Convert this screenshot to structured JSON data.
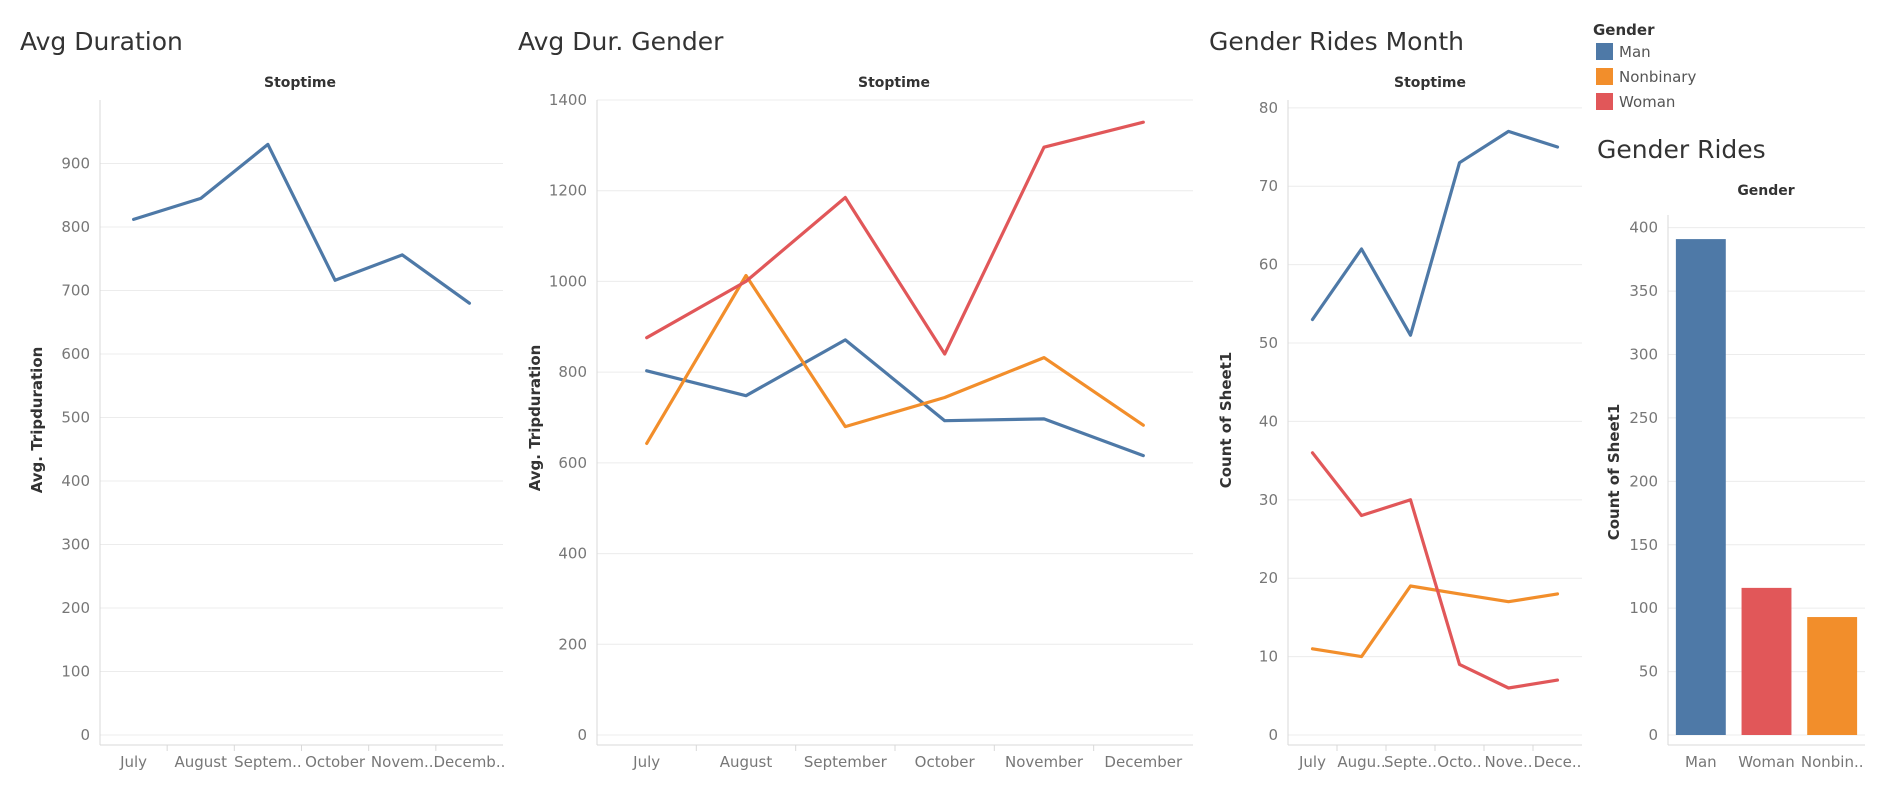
{
  "colors": {
    "man": "#4e79a7",
    "nonbinary": "#f28e2b",
    "woman": "#e15759"
  },
  "legend": {
    "title": "Gender",
    "items": [
      {
        "label": "Man",
        "color": "#4e79a7"
      },
      {
        "label": "Nonbinary",
        "color": "#f28e2b"
      },
      {
        "label": "Woman",
        "color": "#e15759"
      }
    ]
  },
  "chart_data": [
    {
      "type": "line",
      "title": "Avg Duration",
      "header": "Stoptime",
      "ylabel": "Avg. Tripduration",
      "xlabel": "",
      "categories": [
        "July",
        "August",
        "Septem..",
        "October",
        "Novem..",
        "Decemb.."
      ],
      "ylim": [
        0,
        1000
      ],
      "yticks": [
        0,
        100,
        200,
        300,
        400,
        500,
        600,
        700,
        800,
        900
      ],
      "series": [
        {
          "color": "#4e79a7",
          "values": [
            812,
            845,
            930,
            716,
            756,
            680
          ]
        }
      ]
    },
    {
      "type": "line",
      "title": "Avg Dur. Gender",
      "header": "Stoptime",
      "ylabel": "Avg. Tripduration",
      "xlabel": "",
      "categories": [
        "July",
        "August",
        "September",
        "October",
        "November",
        "December"
      ],
      "ylim": [
        0,
        1400
      ],
      "yticks": [
        0,
        200,
        400,
        600,
        800,
        1000,
        1200,
        1400
      ],
      "series": [
        {
          "name": "Man",
          "color": "#4e79a7",
          "values": [
            803,
            748,
            871,
            693,
            697,
            616
          ]
        },
        {
          "name": "Nonbinary",
          "color": "#f28e2b",
          "values": [
            643,
            1013,
            680,
            744,
            832,
            683
          ]
        },
        {
          "name": "Woman",
          "color": "#e15759",
          "values": [
            876,
            1000,
            1185,
            840,
            1296,
            1351
          ]
        }
      ]
    },
    {
      "type": "line",
      "title": "Gender Rides Month",
      "header": "Stoptime",
      "ylabel": "Count of Sheet1",
      "xlabel": "",
      "categories": [
        "July",
        "Augu..",
        "Septe..",
        "Octo..",
        "Nove..",
        "Dece.."
      ],
      "ylim": [
        0,
        81
      ],
      "yticks": [
        0,
        10,
        20,
        30,
        40,
        50,
        60,
        70,
        80
      ],
      "series": [
        {
          "name": "Man",
          "color": "#4e79a7",
          "values": [
            53,
            62,
            51,
            73,
            77,
            75
          ]
        },
        {
          "name": "Nonbinary",
          "color": "#f28e2b",
          "values": [
            11,
            10,
            19,
            18,
            17,
            18
          ]
        },
        {
          "name": "Woman",
          "color": "#e15759",
          "values": [
            36,
            28,
            30,
            9,
            6,
            7
          ]
        }
      ]
    },
    {
      "type": "bar",
      "title": "Gender Rides",
      "header": "Gender",
      "ylabel": "Count of Sheet1",
      "xlabel": "",
      "categories": [
        "Man",
        "Woman",
        "Nonbin.."
      ],
      "colors": [
        "#4e79a7",
        "#e15759",
        "#f28e2b"
      ],
      "values": [
        391,
        116,
        93
      ],
      "ylim": [
        0,
        410
      ],
      "yticks": [
        0,
        50,
        100,
        150,
        200,
        250,
        300,
        350,
        400
      ]
    }
  ]
}
